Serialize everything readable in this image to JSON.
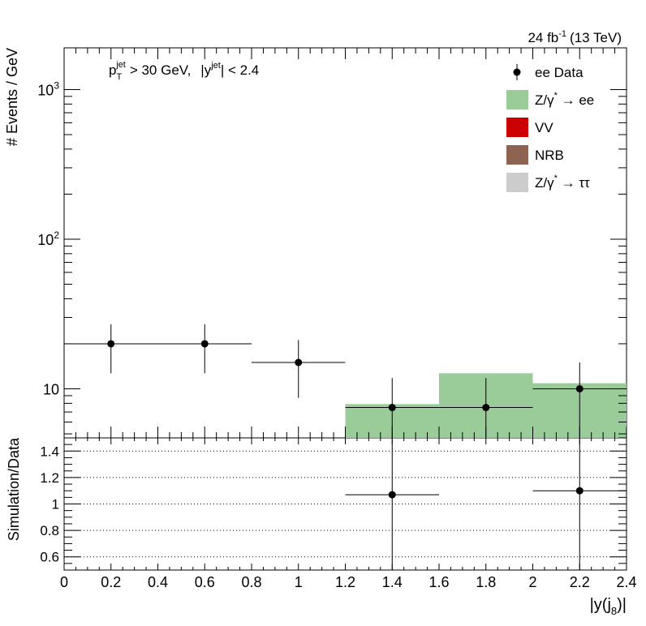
{
  "chart_data": {
    "type": "bar",
    "lumi": {
      "value": "24 fb",
      "exponent": "-1",
      "energy": "(13 TeV)"
    },
    "cut_label": {
      "pt_sym": "p",
      "pt_sub": "T",
      "pt_sup": "jet",
      "pt_text": "> 30 GeV,",
      "y_pre": "|y",
      "y_sup": "jet",
      "y_text": "| < 2.4"
    },
    "xlabel": {
      "main": "|y(j",
      "sub": "8",
      "end": ")|"
    },
    "xlim": [
      0,
      2.4
    ],
    "x_ticks": [
      "0",
      "0.2",
      "0.4",
      "0.6",
      "0.8",
      "1",
      "1.2",
      "1.4",
      "1.6",
      "1.8",
      "2",
      "2.2",
      "2.4"
    ],
    "top_panel": {
      "ylabel": "# Events / GeV",
      "yscale": "log",
      "ylim": [
        4.7,
        1900
      ],
      "y_ticks": [
        {
          "value": 10,
          "base": "10",
          "exp": ""
        },
        {
          "value": 100,
          "base": "10",
          "exp": "2"
        },
        {
          "value": 1000,
          "base": "10",
          "exp": "3"
        }
      ],
      "bins": [
        0.0,
        0.4,
        0.8,
        1.2,
        1.6,
        2.0,
        2.4
      ],
      "stack": [
        {
          "name": "Z/γ* → ee",
          "color": "#99cc99",
          "values": [
            0,
            0,
            0,
            7.9,
            12.7,
            10.9
          ]
        },
        {
          "name": "VV",
          "color": "#cc0000",
          "values": [
            0,
            0,
            0,
            0,
            0,
            0
          ]
        },
        {
          "name": "NRB",
          "color": "#8c6451",
          "values": [
            0,
            0,
            0,
            0,
            0,
            0
          ]
        },
        {
          "name": "Z/γ* → ττ",
          "color": "#cccccc",
          "values": [
            0,
            0,
            0,
            0,
            0,
            0
          ]
        }
      ],
      "data": {
        "name": "ee Data",
        "x": [
          0.2,
          0.6,
          1.0,
          1.4,
          1.8,
          2.2
        ],
        "xerr": [
          0.2,
          0.2,
          0.2,
          0.2,
          0.2,
          0.2
        ],
        "y": [
          20,
          20,
          15,
          7.5,
          7.5,
          10
        ],
        "yerr_low": [
          7.3,
          7.3,
          6.3,
          4.5,
          4.5,
          5.3
        ],
        "yerr_high": [
          7.0,
          7.0,
          6.2,
          4.3,
          4.3,
          5.0
        ]
      }
    },
    "ratio_panel": {
      "ylabel": "Simulation/Data",
      "ylim": [
        0.5,
        1.5
      ],
      "y_ticks": [
        "0.6",
        "0.8",
        "1",
        "1.2",
        "1.4"
      ],
      "gridlines": [
        0.6,
        0.8,
        1.0,
        1.2,
        1.4
      ],
      "points": [
        {
          "x": 1.4,
          "xerr": 0.2,
          "y": 1.07,
          "yerr_low": 0.65,
          "yerr_high": 0.6
        },
        {
          "x": 2.2,
          "xerr": 0.2,
          "y": 1.1,
          "yerr_low": 0.62,
          "yerr_high": 0.58
        }
      ]
    },
    "legend": {
      "placement": "top-right",
      "entries": [
        {
          "kind": "marker",
          "sym": "ee Data",
          "sup": "",
          "tail": ""
        },
        {
          "kind": "box",
          "color": "#99cc99",
          "sym": "Z/γ",
          "sup": "*",
          "tail": " → ee"
        },
        {
          "kind": "box",
          "color": "#cc0000",
          "sym": "VV",
          "sup": "",
          "tail": ""
        },
        {
          "kind": "box",
          "color": "#8c6451",
          "sym": "NRB",
          "sup": "",
          "tail": ""
        },
        {
          "kind": "box",
          "color": "#cccccc",
          "sym": "Z/γ",
          "sup": "*",
          "tail": " → ττ"
        }
      ]
    }
  }
}
